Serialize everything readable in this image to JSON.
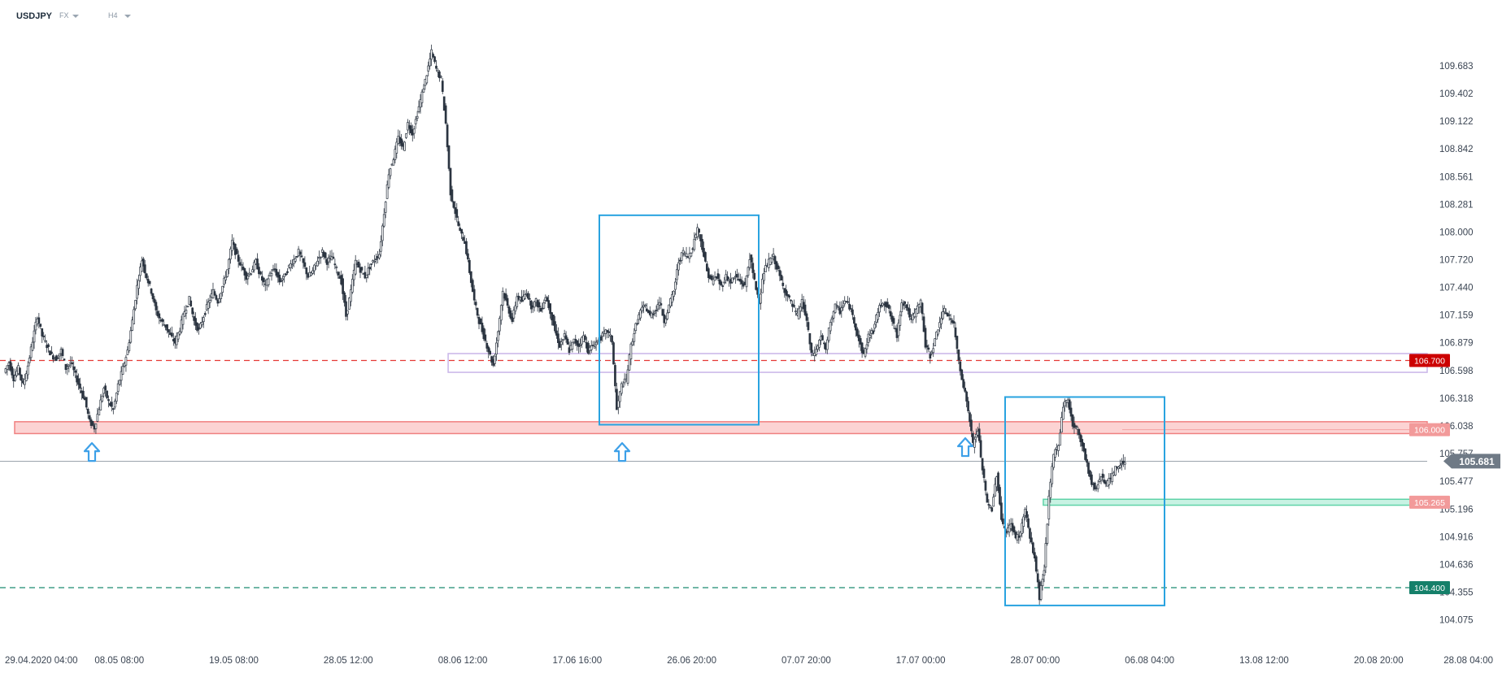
{
  "header": {
    "symbol": "USDJPY",
    "market": "FX",
    "timeframe": "H4"
  },
  "chart_data": {
    "type": "candlestick",
    "title": "",
    "xlabel": "",
    "ylabel": "",
    "ylim": [
      104.03,
      110.02
    ],
    "y_ticks": [
      "109.683",
      "109.402",
      "109.122",
      "108.842",
      "108.561",
      "108.281",
      "108.000",
      "107.720",
      "107.440",
      "107.159",
      "106.879",
      "106.598",
      "106.318",
      "106.038",
      "105.757",
      "105.477",
      "105.196",
      "104.916",
      "104.636",
      "104.355",
      "104.075"
    ],
    "x_ticks": [
      "29.04.2020 04:00",
      "08.05 08:00",
      "19.05 08:00",
      "28.05 12:00",
      "08.06 12:00",
      "17.06 16:00",
      "26.06 20:00",
      "07.07 20:00",
      "17.07 00:00",
      "28.07 00:00",
      "06.08 04:00",
      "13.08 12:00",
      "20.08 20:00",
      "28.08 04:00"
    ],
    "current_price": {
      "label": "105.681",
      "value": 105.681
    },
    "levels": [
      {
        "label": "106.700",
        "value": 106.7,
        "style": "dashed",
        "color": "#e53935",
        "badge_color": "#cc0000"
      },
      {
        "label": "106.000",
        "value": 106.0,
        "style": "solid",
        "color": "#f4a3a3",
        "badge_color": "#f29a9a"
      },
      {
        "label": "105.265",
        "value": 105.265,
        "style": "zone",
        "color": "#7ee0bf",
        "badge_color": "#f29a9a"
      },
      {
        "label": "104.400",
        "value": 104.4,
        "style": "dashed",
        "color": "#1a8a70",
        "badge_color": "#15806a"
      }
    ],
    "zones": [
      {
        "from_x": "29.04.2020 04:00",
        "to_x": "end",
        "y0": 105.96,
        "y1": 106.08,
        "fill": "#fcd3d3",
        "stroke": "#f08080"
      },
      {
        "from_x": "08.06 12:00",
        "to_x": "end",
        "y0": 106.58,
        "y1": 106.77,
        "fill": "none",
        "stroke": "#c9b5e8"
      },
      {
        "from_x": "28.07 00:00",
        "to_x": "end",
        "y0": 105.235,
        "y1": 105.295,
        "fill": "#c8f2e3",
        "stroke": "#5fd3a8"
      }
    ],
    "boxes": [
      {
        "x0": "17.06 16:00",
        "x1": "07.07 20:00",
        "y0": 106.05,
        "y1": 108.17,
        "color": "#29a3e0"
      },
      {
        "x0": "28.07 00:00",
        "x1": "13.08 12:00",
        "y0": 104.22,
        "y1": 106.33,
        "color": "#29a3e0"
      }
    ],
    "arrows": [
      {
        "x": "29.04.2020 04:00",
        "y": 105.88,
        "direction": "up",
        "color": "#3da0e8"
      },
      {
        "x": "17.06 16:00",
        "y": 105.88,
        "direction": "up",
        "color": "#3da0e8"
      },
      {
        "x": "28.07 00:00",
        "y": 105.93,
        "direction": "up",
        "color": "#3da0e8"
      }
    ],
    "ohlc_path": [
      [
        0,
        106.58
      ],
      [
        5,
        106.68
      ],
      [
        10,
        106.52
      ],
      [
        15,
        106.62
      ],
      [
        20,
        106.45
      ],
      [
        25,
        106.65
      ],
      [
        30,
        106.9
      ],
      [
        35,
        107.15
      ],
      [
        40,
        106.95
      ],
      [
        45,
        106.85
      ],
      [
        50,
        106.75
      ],
      [
        55,
        106.72
      ],
      [
        60,
        106.8
      ],
      [
        65,
        106.62
      ],
      [
        70,
        106.68
      ],
      [
        75,
        106.55
      ],
      [
        80,
        106.42
      ],
      [
        85,
        106.3
      ],
      [
        90,
        106.08
      ],
      [
        95,
        106.02
      ],
      [
        100,
        106.22
      ],
      [
        105,
        106.42
      ],
      [
        110,
        106.28
      ],
      [
        115,
        106.2
      ],
      [
        120,
        106.45
      ],
      [
        125,
        106.62
      ],
      [
        130,
        106.8
      ],
      [
        135,
        107.1
      ],
      [
        140,
        107.45
      ],
      [
        145,
        107.72
      ],
      [
        150,
        107.55
      ],
      [
        155,
        107.4
      ],
      [
        160,
        107.2
      ],
      [
        165,
        107.1
      ],
      [
        170,
        107.05
      ],
      [
        175,
        106.95
      ],
      [
        180,
        106.88
      ],
      [
        185,
        107.02
      ],
      [
        190,
        107.2
      ],
      [
        195,
        107.32
      ],
      [
        200,
        107.1
      ],
      [
        205,
        107.0
      ],
      [
        210,
        107.15
      ],
      [
        215,
        107.28
      ],
      [
        220,
        107.4
      ],
      [
        225,
        107.3
      ],
      [
        230,
        107.45
      ],
      [
        235,
        107.62
      ],
      [
        240,
        107.9
      ],
      [
        245,
        107.75
      ],
      [
        250,
        107.65
      ],
      [
        255,
        107.55
      ],
      [
        260,
        107.6
      ],
      [
        265,
        107.7
      ],
      [
        270,
        107.55
      ],
      [
        275,
        107.45
      ],
      [
        280,
        107.58
      ],
      [
        285,
        107.62
      ],
      [
        290,
        107.5
      ],
      [
        295,
        107.55
      ],
      [
        300,
        107.65
      ],
      [
        305,
        107.72
      ],
      [
        310,
        107.8
      ],
      [
        315,
        107.68
      ],
      [
        320,
        107.55
      ],
      [
        325,
        107.6
      ],
      [
        330,
        107.72
      ],
      [
        335,
        107.8
      ],
      [
        340,
        107.7
      ],
      [
        345,
        107.75
      ],
      [
        350,
        107.62
      ],
      [
        355,
        107.5
      ],
      [
        360,
        107.15
      ],
      [
        365,
        107.4
      ],
      [
        370,
        107.7
      ],
      [
        375,
        107.62
      ],
      [
        380,
        107.55
      ],
      [
        385,
        107.65
      ],
      [
        390,
        107.72
      ],
      [
        395,
        107.78
      ],
      [
        400,
        108.2
      ],
      [
        405,
        108.6
      ],
      [
        410,
        108.75
      ],
      [
        415,
        108.95
      ],
      [
        420,
        108.85
      ],
      [
        425,
        109.1
      ],
      [
        430,
        109.0
      ],
      [
        435,
        109.2
      ],
      [
        440,
        109.4
      ],
      [
        445,
        109.6
      ],
      [
        450,
        109.82
      ],
      [
        455,
        109.65
      ],
      [
        460,
        109.55
      ],
      [
        465,
        109.1
      ],
      [
        470,
        108.4
      ],
      [
        475,
        108.2
      ],
      [
        480,
        108.0
      ],
      [
        485,
        107.9
      ],
      [
        490,
        107.6
      ],
      [
        495,
        107.3
      ],
      [
        500,
        107.1
      ],
      [
        505,
        106.95
      ],
      [
        510,
        106.8
      ],
      [
        515,
        106.65
      ],
      [
        520,
        107.0
      ],
      [
        525,
        107.4
      ],
      [
        530,
        107.25
      ],
      [
        535,
        107.1
      ],
      [
        540,
        107.35
      ],
      [
        545,
        107.3
      ],
      [
        550,
        107.4
      ],
      [
        555,
        107.25
      ],
      [
        560,
        107.3
      ],
      [
        565,
        107.2
      ],
      [
        570,
        107.35
      ],
      [
        575,
        107.2
      ],
      [
        580,
        107.0
      ],
      [
        585,
        106.85
      ],
      [
        590,
        106.95
      ],
      [
        595,
        106.8
      ],
      [
        600,
        106.9
      ],
      [
        605,
        106.85
      ],
      [
        610,
        106.95
      ],
      [
        615,
        106.8
      ],
      [
        620,
        106.85
      ],
      [
        625,
        106.9
      ],
      [
        630,
        106.95
      ],
      [
        635,
        107.0
      ],
      [
        640,
        106.9
      ],
      [
        645,
        106.2
      ],
      [
        650,
        106.45
      ],
      [
        655,
        106.5
      ],
      [
        660,
        106.85
      ],
      [
        665,
        107.05
      ],
      [
        670,
        107.2
      ],
      [
        675,
        107.25
      ],
      [
        680,
        107.15
      ],
      [
        685,
        107.2
      ],
      [
        690,
        107.3
      ],
      [
        695,
        107.1
      ],
      [
        700,
        107.25
      ],
      [
        705,
        107.4
      ],
      [
        710,
        107.7
      ],
      [
        715,
        107.8
      ],
      [
        720,
        107.75
      ],
      [
        725,
        107.85
      ],
      [
        730,
        108.05
      ],
      [
        735,
        107.85
      ],
      [
        740,
        107.6
      ],
      [
        745,
        107.5
      ],
      [
        750,
        107.55
      ],
      [
        755,
        107.45
      ],
      [
        760,
        107.55
      ],
      [
        765,
        107.5
      ],
      [
        770,
        107.55
      ],
      [
        775,
        107.5
      ],
      [
        780,
        107.45
      ],
      [
        785,
        107.75
      ],
      [
        790,
        107.5
      ],
      [
        795,
        107.3
      ],
      [
        800,
        107.6
      ],
      [
        805,
        107.7
      ],
      [
        810,
        107.75
      ],
      [
        815,
        107.6
      ],
      [
        820,
        107.45
      ],
      [
        825,
        107.35
      ],
      [
        830,
        107.25
      ],
      [
        835,
        107.15
      ],
      [
        840,
        107.3
      ],
      [
        845,
        107.1
      ],
      [
        850,
        106.75
      ],
      [
        855,
        106.8
      ],
      [
        860,
        106.95
      ],
      [
        865,
        106.8
      ],
      [
        870,
        107.1
      ],
      [
        875,
        107.25
      ],
      [
        880,
        107.2
      ],
      [
        885,
        107.3
      ],
      [
        890,
        107.25
      ],
      [
        895,
        107.1
      ],
      [
        900,
        106.9
      ],
      [
        905,
        106.75
      ],
      [
        910,
        106.95
      ],
      [
        915,
        107.0
      ],
      [
        920,
        107.2
      ],
      [
        925,
        107.3
      ],
      [
        930,
        107.25
      ],
      [
        935,
        107.1
      ],
      [
        940,
        106.95
      ],
      [
        945,
        107.3
      ],
      [
        950,
        107.25
      ],
      [
        955,
        107.1
      ],
      [
        960,
        107.2
      ],
      [
        965,
        107.3
      ],
      [
        970,
        106.85
      ],
      [
        975,
        106.75
      ],
      [
        980,
        106.9
      ],
      [
        985,
        107.1
      ],
      [
        990,
        107.2
      ],
      [
        995,
        107.15
      ],
      [
        1000,
        107.05
      ],
      [
        1005,
        106.7
      ],
      [
        1010,
        106.45
      ],
      [
        1015,
        106.2
      ],
      [
        1020,
        105.85
      ],
      [
        1025,
        106.0
      ],
      [
        1030,
        105.6
      ],
      [
        1035,
        105.25
      ],
      [
        1040,
        105.2
      ],
      [
        1045,
        105.55
      ],
      [
        1050,
        105.1
      ],
      [
        1055,
        104.95
      ],
      [
        1060,
        105.05
      ],
      [
        1065,
        104.9
      ],
      [
        1070,
        104.95
      ],
      [
        1075,
        105.2
      ],
      [
        1080,
        104.9
      ],
      [
        1085,
        104.7
      ],
      [
        1090,
        104.3
      ],
      [
        1095,
        104.6
      ],
      [
        1100,
        105.3
      ],
      [
        1105,
        105.75
      ],
      [
        1110,
        105.85
      ],
      [
        1115,
        106.25
      ],
      [
        1120,
        106.3
      ],
      [
        1125,
        106.05
      ],
      [
        1130,
        106.0
      ],
      [
        1135,
        105.85
      ],
      [
        1140,
        105.65
      ],
      [
        1145,
        105.45
      ],
      [
        1150,
        105.4
      ],
      [
        1155,
        105.55
      ],
      [
        1160,
        105.45
      ],
      [
        1165,
        105.5
      ],
      [
        1170,
        105.6
      ],
      [
        1175,
        105.65
      ],
      [
        1180,
        105.68
      ]
    ]
  }
}
